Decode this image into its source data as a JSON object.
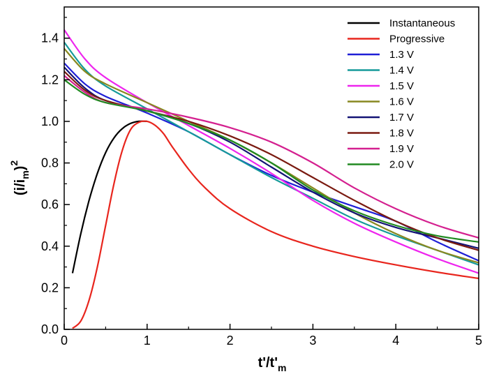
{
  "chart_data": {
    "type": "line",
    "xlabel": {
      "main": "t'/t'",
      "sub": "m"
    },
    "ylabel": {
      "main": "(i/i",
      "sub": "m",
      "close": ")",
      "sup": "2"
    },
    "xlim": [
      0,
      5
    ],
    "ylim": [
      0,
      1.55
    ],
    "xticks": [
      "0",
      "1",
      "2",
      "3",
      "4",
      "5"
    ],
    "yticks": [
      "0.0",
      "0.2",
      "0.4",
      "0.6",
      "0.8",
      "1.0",
      "1.2",
      "1.4"
    ],
    "grid": false,
    "legend_position": "top-right",
    "series": [
      {
        "name": "Instantaneous",
        "color": "#000000",
        "points": [
          [
            0.1,
            0.27
          ],
          [
            0.2,
            0.46
          ],
          [
            0.3,
            0.62
          ],
          [
            0.4,
            0.75
          ],
          [
            0.5,
            0.85
          ],
          [
            0.6,
            0.92
          ],
          [
            0.7,
            0.965
          ],
          [
            0.8,
            0.99
          ],
          [
            0.9,
            1.0
          ],
          [
            1.0,
            1.0
          ]
        ]
      },
      {
        "name": "Progressive",
        "color": "#e8251d",
        "points": [
          [
            0.1,
            0.005
          ],
          [
            0.2,
            0.04
          ],
          [
            0.3,
            0.14
          ],
          [
            0.4,
            0.3
          ],
          [
            0.5,
            0.5
          ],
          [
            0.6,
            0.7
          ],
          [
            0.7,
            0.86
          ],
          [
            0.8,
            0.96
          ],
          [
            0.9,
            0.995
          ],
          [
            1.0,
            1.0
          ],
          [
            1.1,
            0.98
          ],
          [
            1.2,
            0.94
          ],
          [
            1.3,
            0.88
          ],
          [
            1.5,
            0.77
          ],
          [
            1.7,
            0.68
          ],
          [
            2.0,
            0.58
          ],
          [
            2.5,
            0.47
          ],
          [
            3.0,
            0.4
          ],
          [
            3.5,
            0.35
          ],
          [
            4.0,
            0.31
          ],
          [
            4.5,
            0.275
          ],
          [
            5.0,
            0.245
          ]
        ]
      },
      {
        "name": "1.3 V",
        "color": "#1f1fd6",
        "points": [
          [
            0,
            1.28
          ],
          [
            0.25,
            1.18
          ],
          [
            0.5,
            1.12
          ],
          [
            1,
            1.04
          ],
          [
            1.5,
            0.95
          ],
          [
            2,
            0.84
          ],
          [
            2.5,
            0.74
          ],
          [
            3,
            0.66
          ],
          [
            3.5,
            0.59
          ],
          [
            4,
            0.52
          ],
          [
            4.5,
            0.42
          ],
          [
            5,
            0.33
          ]
        ]
      },
      {
        "name": "1.4 V",
        "color": "#159a9a",
        "points": [
          [
            0,
            1.38
          ],
          [
            0.25,
            1.25
          ],
          [
            0.5,
            1.17
          ],
          [
            1,
            1.06
          ],
          [
            1.5,
            0.95
          ],
          [
            2,
            0.84
          ],
          [
            2.5,
            0.73
          ],
          [
            3,
            0.63
          ],
          [
            3.5,
            0.53
          ],
          [
            4,
            0.45
          ],
          [
            4.5,
            0.38
          ],
          [
            5,
            0.31
          ]
        ]
      },
      {
        "name": "1.5 V",
        "color": "#ee25ee",
        "points": [
          [
            0,
            1.44
          ],
          [
            0.25,
            1.3
          ],
          [
            0.5,
            1.21
          ],
          [
            1,
            1.09
          ],
          [
            1.5,
            0.98
          ],
          [
            2,
            0.87
          ],
          [
            2.5,
            0.75
          ],
          [
            3,
            0.62
          ],
          [
            3.5,
            0.51
          ],
          [
            4,
            0.42
          ],
          [
            4.5,
            0.34
          ],
          [
            5,
            0.27
          ]
        ]
      },
      {
        "name": "1.6 V",
        "color": "#888820",
        "points": [
          [
            0,
            1.35
          ],
          [
            0.25,
            1.24
          ],
          [
            0.5,
            1.18
          ],
          [
            1,
            1.09
          ],
          [
            1.5,
            1.0
          ],
          [
            2,
            0.91
          ],
          [
            2.5,
            0.8
          ],
          [
            3,
            0.68
          ],
          [
            3.5,
            0.56
          ],
          [
            4,
            0.46
          ],
          [
            4.5,
            0.38
          ],
          [
            5,
            0.32
          ]
        ]
      },
      {
        "name": "1.7 V",
        "color": "#131375",
        "points": [
          [
            0,
            1.26
          ],
          [
            0.25,
            1.16
          ],
          [
            0.5,
            1.1
          ],
          [
            1,
            1.05
          ],
          [
            1.5,
            0.99
          ],
          [
            2,
            0.9
          ],
          [
            2.5,
            0.78
          ],
          [
            3,
            0.66
          ],
          [
            3.5,
            0.56
          ],
          [
            4,
            0.49
          ],
          [
            4.5,
            0.44
          ],
          [
            5,
            0.39
          ]
        ]
      },
      {
        "name": "1.8 V",
        "color": "#7a1a10",
        "points": [
          [
            0,
            1.24
          ],
          [
            0.25,
            1.15
          ],
          [
            0.5,
            1.1
          ],
          [
            1,
            1.05
          ],
          [
            1.5,
            1.0
          ],
          [
            2,
            0.93
          ],
          [
            2.5,
            0.84
          ],
          [
            3,
            0.73
          ],
          [
            3.5,
            0.62
          ],
          [
            4,
            0.52
          ],
          [
            4.5,
            0.44
          ],
          [
            5,
            0.38
          ]
        ]
      },
      {
        "name": "1.9 V",
        "color": "#d4208f",
        "points": [
          [
            0,
            1.22
          ],
          [
            0.25,
            1.14
          ],
          [
            0.5,
            1.09
          ],
          [
            1,
            1.06
          ],
          [
            1.5,
            1.02
          ],
          [
            2,
            0.97
          ],
          [
            2.5,
            0.9
          ],
          [
            3,
            0.8
          ],
          [
            3.5,
            0.68
          ],
          [
            4,
            0.58
          ],
          [
            4.5,
            0.5
          ],
          [
            5,
            0.44
          ]
        ]
      },
      {
        "name": "2.0 V",
        "color": "#218a21",
        "points": [
          [
            0,
            1.2
          ],
          [
            0.25,
            1.13
          ],
          [
            0.5,
            1.09
          ],
          [
            1,
            1.05
          ],
          [
            1.5,
            0.99
          ],
          [
            2,
            0.91
          ],
          [
            2.5,
            0.8
          ],
          [
            3,
            0.67
          ],
          [
            3.5,
            0.57
          ],
          [
            4,
            0.5
          ],
          [
            4.5,
            0.45
          ],
          [
            5,
            0.42
          ]
        ]
      }
    ]
  }
}
